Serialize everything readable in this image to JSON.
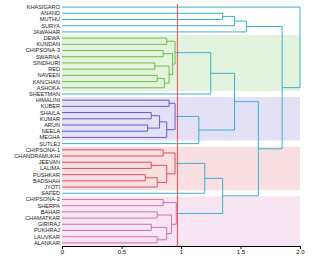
{
  "chart_data": {
    "type": "dendrogram",
    "color": "#3ab0d0",
    "xlim": [
      0,
      2
    ],
    "xticks": [
      0,
      0.5,
      1,
      1.5,
      {
        "value": 2,
        "label": "2.0"
      }
    ],
    "cut_height": 0.97,
    "tree": {
      "height": 2.0,
      "children": [
        {
          "name": "KHASIGARO"
        },
        {
          "height": 1.85,
          "children": [
            {
              "height": 1.55,
              "children": [
                {
                  "height": 1.45,
                  "children": [
                    {
                      "height": 1.35,
                      "children": [
                        {
                          "name": "ANAND"
                        },
                        {
                          "name": "MUTHU"
                        }
                      ]
                    },
                    {
                      "name": "SURYA"
                    }
                  ]
                },
                {
                  "name": "JAWAHAR"
                }
              ]
            },
            {
              "height": 1.65,
              "children": [
                {
                  "height": 1.45,
                  "children": [
                    {
                      "height": 1.25,
                      "children": [
                        {
                          "height": 0.95,
                          "color": "#6cbf4a",
                          "children": [
                            {
                              "height": 0.88,
                              "children": [
                                {
                                  "name": "DEWA"
                                },
                                {
                                  "name": "KUNDAN"
                                }
                              ]
                            },
                            {
                              "height": 0.93,
                              "children": [
                                {
                                  "height": 0.85,
                                  "children": [
                                    {
                                      "name": "CHIPSONA-3"
                                    },
                                    {
                                      "name": "SWARNA"
                                    }
                                  ]
                                },
                                {
                                  "height": 0.9,
                                  "children": [
                                    {
                                      "height": 0.78,
                                      "children": [
                                        {
                                          "name": "SINDHURI"
                                        },
                                        {
                                          "name": "RED"
                                        }
                                      ]
                                    },
                                    {
                                      "height": 0.86,
                                      "children": [
                                        {
                                          "height": 0.8,
                                          "children": [
                                            {
                                              "name": "NAVEEN"
                                            },
                                            {
                                              "name": "KANCHAN"
                                            }
                                          ]
                                        },
                                        {
                                          "name": "ASHOKA"
                                        }
                                      ]
                                    }
                                  ]
                                }
                              ]
                            }
                          ]
                        },
                        {
                          "name": "SHEETMAN"
                        }
                      ]
                    },
                    {
                      "height": 1.15,
                      "children": [
                        {
                          "height": 0.95,
                          "color": "#6a5acd",
                          "children": [
                            {
                              "height": 0.9,
                              "children": [
                                {
                                  "name": "HIMALINI"
                                },
                                {
                                  "name": "KUBER"
                                }
                              ]
                            },
                            {
                              "height": 0.88,
                              "children": [
                                {
                                  "height": 0.82,
                                  "children": [
                                    {
                                      "height": 0.75,
                                      "children": [
                                        {
                                          "name": "SHAILA"
                                        },
                                        {
                                          "name": "KUMAR"
                                        }
                                      ]
                                    },
                                    {
                                      "height": 0.72,
                                      "children": [
                                        {
                                          "name": "ARUN"
                                        },
                                        {
                                          "name": "NEELA"
                                        }
                                      ]
                                    }
                                  ]
                                },
                                {
                                  "name": "MEGHA"
                                }
                              ]
                            }
                          ]
                        },
                        {
                          "name": "SUTLEJ"
                        }
                      ]
                    }
                  ]
                },
                {
                  "height": 1.35,
                  "children": [
                    {
                      "height": 1.2,
                      "children": [
                        {
                          "height": 0.95,
                          "color": "#e0505a",
                          "children": [
                            {
                              "height": 0.85,
                              "children": [
                                {
                                  "name": "CHIPSONA-1"
                                },
                                {
                                  "name": "CHANDRAMUKHI"
                                }
                              ]
                            },
                            {
                              "height": 0.88,
                              "children": [
                                {
                                  "height": 0.75,
                                  "children": [
                                    {
                                      "name": "JEEVAN"
                                    },
                                    {
                                      "name": "LALIMA"
                                    }
                                  ]
                                },
                                {
                                  "height": 0.8,
                                  "children": [
                                    {
                                      "height": 0.7,
                                      "children": [
                                        {
                                          "name": "PUSHKAR"
                                        },
                                        {
                                          "name": "BADSHAH"
                                        }
                                      ]
                                    },
                                    {
                                      "name": "JYOTI"
                                    }
                                  ]
                                }
                              ]
                            }
                          ]
                        },
                        {
                          "name": "SAFED"
                        }
                      ]
                    },
                    {
                      "height": 0.96,
                      "color": "#d070b0",
                      "children": [
                        {
                          "height": 0.85,
                          "children": [
                            {
                              "name": "CHIPSONA-2"
                            },
                            {
                              "name": "SHERPA"
                            }
                          ]
                        },
                        {
                          "height": 0.92,
                          "children": [
                            {
                              "height": 0.8,
                              "children": [
                                {
                                  "name": "BAHAR"
                                },
                                {
                                  "name": "CHAMATKAR"
                                }
                              ]
                            },
                            {
                              "height": 0.88,
                              "children": [
                                {
                                  "height": 0.75,
                                  "children": [
                                    {
                                      "name": "GIRIRAJ"
                                    },
                                    {
                                      "name": "PUKHRAJ"
                                    }
                                  ]
                                },
                                {
                                  "height": 0.8,
                                  "children": [
                                    {
                                      "name": "LAUVKAR"
                                    },
                                    {
                                      "name": "ALANKAR"
                                    }
                                  ]
                                }
                              ]
                            }
                          ]
                        }
                      ]
                    }
                  ]
                }
              ]
            }
          ]
        }
      ]
    }
  }
}
